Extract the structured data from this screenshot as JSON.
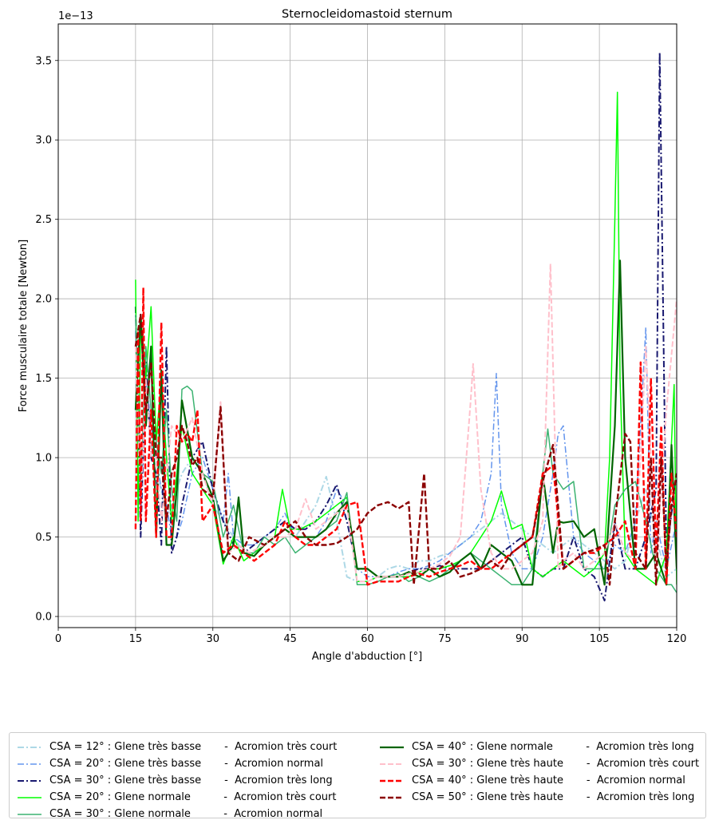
{
  "chart_data": {
    "type": "line",
    "title": "Sternocleidomastoid sternum",
    "xlabel": "Angle d'abduction [°]",
    "ylabel": "Force musculaire totale [Newton]",
    "y_scale_label": "1e−13",
    "xlim": [
      0,
      120
    ],
    "ylim": [
      -0.07,
      3.73
    ],
    "xticks": [
      0,
      15,
      30,
      45,
      60,
      75,
      90,
      105,
      120
    ],
    "yticks": [
      0.0,
      0.5,
      1.0,
      1.5,
      2.0,
      2.5,
      3.0,
      3.5
    ],
    "ytick_labels": [
      "0.0",
      "0.5",
      "1.0",
      "1.5",
      "2.0",
      "2.5",
      "3.0",
      "3.5"
    ],
    "grid": true,
    "legend_position": "bottom-outside",
    "series": [
      {
        "name": "CSA = 12° : Glene très basse       -  Acromion très court",
        "color": "#add8e6",
        "dash": "dashdot",
        "width": 2,
        "x": [
          15,
          16,
          17,
          18,
          19,
          20,
          21,
          22,
          24,
          26,
          28,
          30,
          32,
          34,
          36,
          38,
          40,
          42,
          44,
          46,
          48,
          50,
          52,
          54,
          56,
          58,
          60,
          62,
          64,
          66,
          68,
          70,
          72,
          74,
          76,
          78,
          80,
          82,
          84,
          86,
          88,
          90,
          92,
          94,
          96,
          98,
          100,
          102,
          104,
          106,
          108,
          110,
          112,
          114,
          116,
          118,
          120
        ],
        "y": [
          1.6,
          0.7,
          1.4,
          1.1,
          0.9,
          0.8,
          0.6,
          0.7,
          0.9,
          1.0,
          0.9,
          0.7,
          0.6,
          0.5,
          0.4,
          0.4,
          0.45,
          0.5,
          0.55,
          0.5,
          0.6,
          0.7,
          0.88,
          0.6,
          0.25,
          0.22,
          0.22,
          0.25,
          0.3,
          0.32,
          0.3,
          0.35,
          0.35,
          0.38,
          0.4,
          0.45,
          0.5,
          0.55,
          0.6,
          0.65,
          0.6,
          0.55,
          0.5,
          0.45,
          0.4,
          0.45,
          0.5,
          0.45,
          0.4,
          0.35,
          0.3,
          0.35,
          0.6,
          0.8,
          0.5,
          0.25,
          0.3
        ]
      },
      {
        "name": "CSA = 20° : Glene très basse       -  Acromion normal",
        "color": "#6495ed",
        "dash": "dashdot",
        "width": 1.5,
        "x": [
          15,
          16,
          17,
          18,
          19,
          20,
          21,
          22,
          23,
          24,
          26,
          28,
          30,
          32,
          33,
          34,
          36,
          38,
          40,
          42,
          44,
          46,
          48,
          50,
          52,
          54,
          56,
          58,
          60,
          62,
          64,
          66,
          68,
          70,
          72,
          74,
          76,
          78,
          80,
          82,
          84,
          85,
          86,
          88,
          90,
          92,
          94,
          96,
          97,
          98,
          100,
          102,
          104,
          106,
          108,
          110,
          112,
          114,
          115,
          116,
          118,
          120
        ],
        "y": [
          1.8,
          0.6,
          1.5,
          1.2,
          1.0,
          0.8,
          0.7,
          0.5,
          0.5,
          0.6,
          0.9,
          1.0,
          0.8,
          0.6,
          0.9,
          0.5,
          0.45,
          0.45,
          0.5,
          0.55,
          0.65,
          0.5,
          0.5,
          0.5,
          0.6,
          0.8,
          0.7,
          0.3,
          0.25,
          0.25,
          0.25,
          0.28,
          0.3,
          0.3,
          0.32,
          0.35,
          0.4,
          0.45,
          0.5,
          0.6,
          0.9,
          1.53,
          0.7,
          0.4,
          0.3,
          0.3,
          0.5,
          0.9,
          1.15,
          1.2,
          0.5,
          0.4,
          0.35,
          0.3,
          0.45,
          0.4,
          0.6,
          1.82,
          0.4,
          0.6,
          0.3,
          0.6
        ]
      },
      {
        "name": "CSA = 30° : Glene très basse       -  Acromion très long",
        "color": "#191970",
        "dash": "dashdot",
        "width": 2,
        "x": [
          15,
          16,
          17,
          18,
          19,
          20,
          21,
          22,
          23,
          24,
          26,
          28,
          30,
          32,
          34,
          36,
          38,
          40,
          42,
          44,
          46,
          48,
          50,
          52,
          54,
          56,
          58,
          60,
          62,
          64,
          66,
          68,
          70,
          72,
          74,
          76,
          78,
          80,
          82,
          84,
          86,
          88,
          90,
          92,
          94,
          96,
          98,
          100,
          102,
          104,
          106,
          108,
          110,
          112,
          114,
          116,
          116.7,
          118,
          120
        ],
        "y": [
          1.95,
          0.5,
          1.6,
          1.0,
          0.9,
          0.45,
          1.7,
          0.4,
          0.5,
          0.7,
          1.0,
          1.1,
          0.8,
          0.6,
          0.45,
          0.4,
          0.45,
          0.5,
          0.55,
          0.6,
          0.55,
          0.55,
          0.6,
          0.7,
          0.83,
          0.6,
          0.3,
          0.3,
          0.25,
          0.25,
          0.25,
          0.28,
          0.3,
          0.3,
          0.32,
          0.3,
          0.3,
          0.3,
          0.3,
          0.35,
          0.4,
          0.45,
          0.5,
          0.3,
          0.25,
          0.3,
          0.3,
          0.5,
          0.3,
          0.25,
          0.1,
          0.6,
          0.3,
          0.3,
          0.5,
          0.8,
          3.55,
          0.4,
          0.9
        ]
      },
      {
        "name": "CSA = 20° : Glene normale          -  Acromion très court",
        "color": "#00ff00",
        "dash": "solid",
        "width": 1.5,
        "x": [
          15,
          15.5,
          16,
          17,
          18,
          19,
          20,
          21,
          22,
          24,
          26,
          28,
          30,
          32,
          34,
          36,
          38,
          40,
          42,
          43.5,
          45,
          47,
          50,
          52,
          54,
          56,
          58,
          60,
          62,
          64,
          66,
          68,
          70,
          72,
          74,
          76,
          78,
          80,
          82,
          84,
          86,
          88,
          90,
          92,
          94,
          96,
          98,
          100,
          102,
          104,
          106,
          107,
          108,
          108.5,
          109,
          110,
          112,
          114,
          116,
          118,
          119.5,
          120
        ],
        "y": [
          2.12,
          0.6,
          1.9,
          1.5,
          1.95,
          1.1,
          1.5,
          1.0,
          0.6,
          1.2,
          0.9,
          0.8,
          0.7,
          0.33,
          0.5,
          0.35,
          0.4,
          0.45,
          0.5,
          0.8,
          0.55,
          0.55,
          0.6,
          0.65,
          0.7,
          0.75,
          0.22,
          0.22,
          0.25,
          0.25,
          0.25,
          0.25,
          0.28,
          0.3,
          0.3,
          0.32,
          0.35,
          0.4,
          0.5,
          0.6,
          0.79,
          0.55,
          0.58,
          0.3,
          0.25,
          0.3,
          0.35,
          0.3,
          0.25,
          0.3,
          0.4,
          1.0,
          2.5,
          3.3,
          1.5,
          0.4,
          0.3,
          0.25,
          0.2,
          0.4,
          1.46,
          0.2
        ]
      },
      {
        "name": "CSA = 30° : Glene normale          -  Acromion normal",
        "color": "#3cb371",
        "dash": "solid",
        "width": 1.5,
        "x": [
          15,
          16,
          17,
          18,
          19,
          20,
          21,
          22,
          23,
          24,
          25,
          26,
          28,
          30,
          32,
          34,
          36,
          38,
          40,
          42,
          44,
          46,
          48,
          50,
          52,
          54,
          56,
          58,
          60,
          62,
          64,
          66,
          68,
          70,
          72,
          74,
          76,
          78,
          80,
          82,
          84,
          86,
          88,
          90,
          92,
          94,
          95,
          96,
          98,
          100,
          102,
          104,
          106,
          108,
          110,
          112,
          114,
          116,
          118,
          119,
          120
        ],
        "y": [
          1.9,
          0.8,
          1.7,
          1.3,
          1.1,
          0.9,
          1.3,
          0.8,
          0.6,
          1.43,
          1.45,
          1.42,
          0.9,
          0.85,
          0.5,
          0.7,
          0.4,
          0.4,
          0.5,
          0.45,
          0.5,
          0.4,
          0.45,
          0.5,
          0.55,
          0.6,
          0.78,
          0.2,
          0.2,
          0.22,
          0.25,
          0.27,
          0.22,
          0.25,
          0.22,
          0.25,
          0.3,
          0.35,
          0.4,
          0.35,
          0.3,
          0.25,
          0.2,
          0.2,
          0.3,
          0.9,
          1.18,
          0.9,
          0.8,
          0.85,
          0.3,
          0.3,
          0.3,
          0.7,
          0.8,
          0.85,
          0.6,
          0.3,
          0.2,
          0.2,
          0.15
        ]
      },
      {
        "name": "CSA = 40° : Glene normale          -  Acromion très long",
        "color": "#006400",
        "dash": "solid",
        "width": 2.2,
        "x": [
          15,
          16,
          17,
          18,
          19,
          20,
          21,
          22,
          23,
          24,
          26,
          28,
          30,
          32,
          34,
          35,
          36,
          38,
          40,
          42,
          44,
          46,
          48,
          50,
          52,
          54,
          56,
          58,
          60,
          62,
          64,
          66,
          68,
          70,
          72,
          74,
          76,
          78,
          80,
          82,
          84,
          86,
          88,
          90,
          92,
          94,
          96,
          97,
          98,
          100,
          102,
          104,
          106,
          108,
          109,
          110,
          112,
          114,
          116,
          118,
          119,
          120
        ],
        "y": [
          1.3,
          1.9,
          1.2,
          1.7,
          0.5,
          1.55,
          0.45,
          0.45,
          0.8,
          1.36,
          1.0,
          0.9,
          0.75,
          0.35,
          0.45,
          0.75,
          0.4,
          0.38,
          0.45,
          0.5,
          0.55,
          0.5,
          0.5,
          0.5,
          0.55,
          0.65,
          0.72,
          0.3,
          0.3,
          0.25,
          0.25,
          0.25,
          0.28,
          0.25,
          0.3,
          0.25,
          0.28,
          0.35,
          0.4,
          0.3,
          0.45,
          0.4,
          0.35,
          0.2,
          0.2,
          0.9,
          0.4,
          0.6,
          0.59,
          0.6,
          0.5,
          0.55,
          0.2,
          1.2,
          2.24,
          1.0,
          0.3,
          0.3,
          0.4,
          0.2,
          1.08,
          0.3
        ]
      },
      {
        "name": "CSA = 30° : Glene très haute       -  Acromion très court",
        "color": "#ffc0cb",
        "dash": "dashed",
        "width": 2,
        "x": [
          15,
          16,
          17,
          18,
          19,
          20,
          22,
          24,
          26,
          28,
          30,
          31.5,
          33,
          35,
          37,
          40,
          42,
          44,
          46,
          48,
          50,
          52,
          54,
          56,
          58,
          60,
          62,
          64,
          66,
          68,
          70,
          72,
          74,
          76,
          78,
          80,
          80.5,
          82,
          84,
          86,
          88,
          90,
          92,
          94,
          95.5,
          97,
          98,
          100,
          102,
          104,
          106,
          108,
          110,
          112,
          114,
          116,
          118,
          120
        ],
        "y": [
          1.7,
          0.7,
          1.5,
          1.0,
          1.0,
          0.6,
          1.2,
          1.1,
          1.25,
          0.9,
          0.7,
          1.35,
          0.4,
          0.45,
          0.4,
          0.45,
          0.5,
          0.5,
          0.55,
          0.74,
          0.55,
          0.6,
          0.65,
          0.7,
          0.22,
          0.22,
          0.25,
          0.25,
          0.25,
          0.27,
          0.28,
          0.3,
          0.33,
          0.38,
          0.5,
          1.35,
          1.59,
          0.8,
          0.4,
          0.3,
          0.3,
          0.35,
          0.4,
          0.6,
          2.22,
          0.3,
          0.35,
          0.4,
          0.3,
          0.35,
          0.4,
          0.6,
          0.4,
          0.35,
          1.7,
          0.3,
          1.3,
          2.0
        ]
      },
      {
        "name": "CSA = 40° : Glene très haute       -  Acromion normal",
        "color": "#ff0000",
        "dash": "dashed",
        "width": 2.4,
        "x": [
          15,
          15.5,
          16,
          16.5,
          17,
          18,
          19,
          20,
          21,
          22,
          23,
          24,
          25,
          26,
          27,
          28,
          30,
          32,
          34,
          36,
          38,
          40,
          42,
          44,
          46,
          48,
          50,
          52,
          54,
          56,
          58,
          60,
          62,
          64,
          66,
          68,
          70,
          72,
          74,
          76,
          78,
          80,
          82,
          84,
          86,
          88,
          90,
          92,
          94,
          96,
          98,
          100,
          102,
          104,
          106,
          108,
          110,
          112,
          113,
          114,
          115,
          116,
          117,
          118,
          119,
          120
        ],
        "y": [
          0.55,
          1.8,
          0.6,
          2.07,
          0.6,
          1.3,
          0.5,
          1.85,
          0.5,
          0.5,
          1.2,
          1.1,
          1.15,
          1.1,
          1.3,
          0.6,
          0.7,
          0.4,
          0.45,
          0.4,
          0.35,
          0.4,
          0.45,
          0.6,
          0.5,
          0.45,
          0.45,
          0.5,
          0.55,
          0.7,
          0.72,
          0.2,
          0.22,
          0.22,
          0.22,
          0.25,
          0.27,
          0.25,
          0.28,
          0.3,
          0.32,
          0.35,
          0.3,
          0.3,
          0.35,
          0.4,
          0.45,
          0.5,
          0.9,
          0.95,
          0.3,
          0.35,
          0.4,
          0.4,
          0.45,
          0.5,
          0.6,
          0.3,
          1.6,
          0.3,
          1.5,
          0.4,
          1.2,
          0.2,
          0.9,
          0.5
        ]
      },
      {
        "name": "CSA = 50° : Glene très haute       -  Acromion très long",
        "color": "#8b0000",
        "dash": "dashed",
        "width": 2.4,
        "x": [
          15,
          16,
          17,
          18,
          19,
          20,
          21,
          22,
          23,
          24,
          25,
          26,
          27,
          28,
          30,
          31.5,
          33,
          35,
          37,
          40,
          42,
          44,
          46,
          48,
          50,
          52,
          54,
          56,
          58,
          60,
          62,
          64,
          66,
          68,
          69,
          71,
          72,
          74,
          76,
          78,
          80,
          82,
          84,
          86,
          88,
          90,
          92,
          94,
          96,
          98,
          100,
          102,
          104,
          106,
          107,
          108,
          110,
          111,
          112,
          114,
          115,
          116,
          117,
          118,
          119,
          120
        ],
        "y": [
          1.7,
          1.9,
          1.3,
          1.6,
          1.0,
          1.0,
          0.6,
          0.9,
          1.0,
          1.2,
          1.1,
          0.95,
          1.0,
          0.8,
          0.75,
          1.32,
          0.4,
          0.35,
          0.5,
          0.45,
          0.5,
          0.55,
          0.6,
          0.5,
          0.45,
          0.45,
          0.46,
          0.5,
          0.55,
          0.65,
          0.7,
          0.72,
          0.68,
          0.72,
          0.2,
          0.9,
          0.3,
          0.3,
          0.35,
          0.25,
          0.27,
          0.3,
          0.35,
          0.3,
          0.4,
          0.45,
          0.5,
          0.85,
          1.08,
          0.3,
          0.35,
          0.4,
          0.42,
          0.45,
          0.2,
          0.6,
          1.15,
          1.1,
          0.4,
          0.3,
          1.0,
          0.2,
          1.0,
          0.3,
          0.7,
          0.9
        ]
      }
    ]
  }
}
